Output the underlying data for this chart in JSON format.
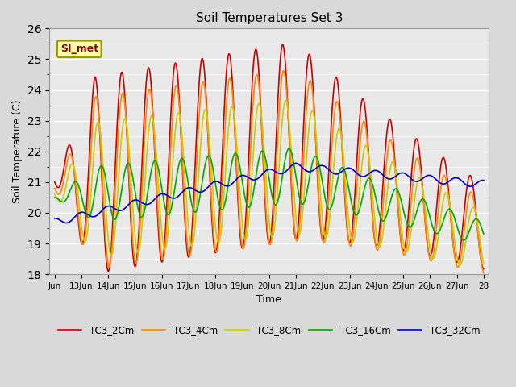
{
  "title": "Soil Temperatures Set 3",
  "xlabel": "Time",
  "ylabel": "Soil Temperature (C)",
  "ylim": [
    18.0,
    26.0
  ],
  "yticks": [
    18.0,
    19.0,
    20.0,
    21.0,
    22.0,
    23.0,
    24.0,
    25.0,
    26.0
  ],
  "xtick_labels": [
    "Jun",
    "13Jun",
    "14Jun",
    "15Jun",
    "16Jun",
    "17Jun",
    "18Jun",
    "19Jun",
    "20Jun",
    "21Jun",
    "22Jun",
    "23Jun",
    "24Jun",
    "25Jun",
    "26Jun",
    "27Jun",
    "28"
  ],
  "series_colors": [
    "#cc0000",
    "#ff8800",
    "#cccc00",
    "#00aa00",
    "#0000cc"
  ],
  "series_labels": [
    "TC3_2Cm",
    "TC3_4Cm",
    "TC3_8Cm",
    "TC3_16Cm",
    "TC3_32Cm"
  ],
  "annotation_text": "SI_met",
  "fig_bg_color": "#d9d9d9",
  "plot_bg_color": "#e8e8e8",
  "line_width": 1.2
}
